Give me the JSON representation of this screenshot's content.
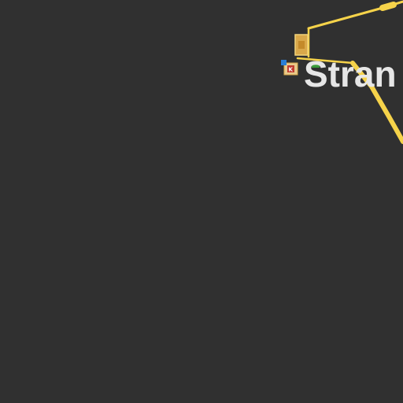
{
  "map": {
    "background": "#303030",
    "road_color": "#f6d34a",
    "place_label": "Stran",
    "label_color": "#e6e6e6",
    "markers": [
      {
        "name": "building-icon",
        "color": "#d9a84a"
      },
      {
        "name": "poi-icon",
        "color": "#c23b2e"
      },
      {
        "name": "info-icon",
        "color": "#2a7fd6"
      },
      {
        "name": "bus-stop-icon",
        "color": "#3a9a3a"
      }
    ]
  }
}
